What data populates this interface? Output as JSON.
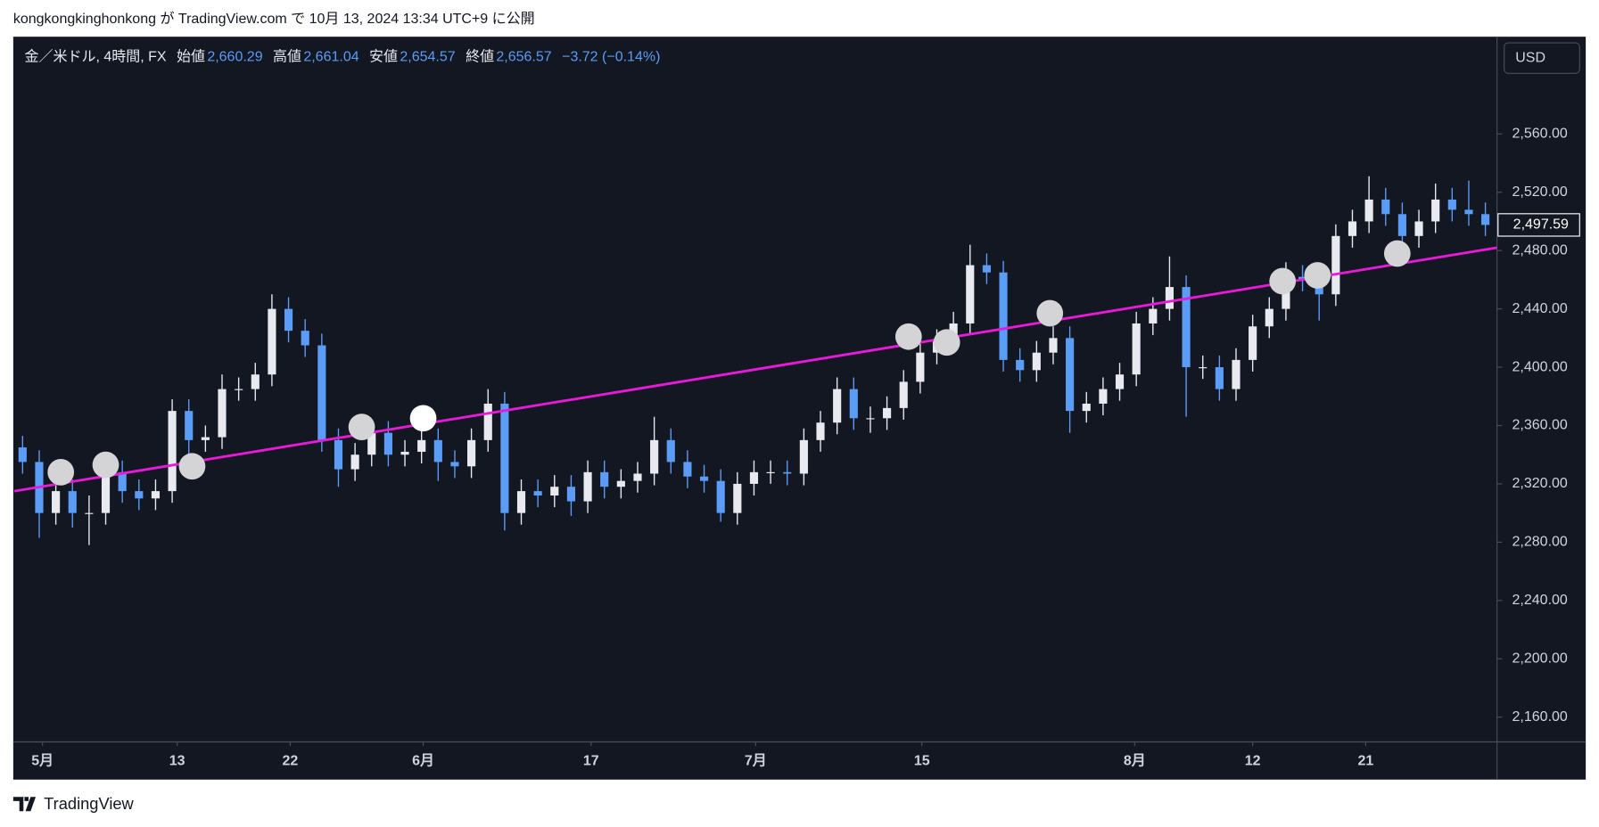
{
  "header": "kongkongkinghonkong が TradingView.com で 10月 13, 2024 13:34 UTC+9 に公開",
  "currency_button": "USD",
  "footer": "TradingView",
  "chart_data": {
    "type": "candlestick",
    "title": "金／米ドル, 4時間, FX",
    "ohlc_legend": [
      {
        "label": "始値",
        "value": "2,660.29"
      },
      {
        "label": "高値",
        "value": "2,661.04"
      },
      {
        "label": "安値",
        "value": "2,654.57"
      },
      {
        "label": "終値",
        "value": "2,656.57"
      }
    ],
    "change": "−3.72 (−0.14%)",
    "up_color": "#e8eaf0",
    "down_color": "#5b9cf6",
    "xlim": [
      -0.5,
      88.7
    ],
    "xticks": [
      {
        "value": 1.2,
        "label": "5月"
      },
      {
        "value": 9.3,
        "label": "13"
      },
      {
        "value": 16.1,
        "label": "22"
      },
      {
        "value": 24.1,
        "label": "6月"
      },
      {
        "value": 34.2,
        "label": "17"
      },
      {
        "value": 44.1,
        "label": "7月"
      },
      {
        "value": 54.1,
        "label": "15"
      },
      {
        "value": 66.9,
        "label": "8月"
      },
      {
        "value": 74.0,
        "label": "12"
      },
      {
        "value": 80.8,
        "label": "21"
      }
    ],
    "ylim": [
      2143,
      2626
    ],
    "yticks": [
      {
        "value": 2160,
        "label": "2,160.00"
      },
      {
        "value": 2200,
        "label": "2,200.00"
      },
      {
        "value": 2240,
        "label": "2,240.00"
      },
      {
        "value": 2280,
        "label": "2,280.00"
      },
      {
        "value": 2320,
        "label": "2,320.00"
      },
      {
        "value": 2360,
        "label": "2,360.00"
      },
      {
        "value": 2400,
        "label": "2,400.00"
      },
      {
        "value": 2440,
        "label": "2,440.00"
      },
      {
        "value": 2480,
        "label": "2,480.00"
      },
      {
        "value": 2520,
        "label": "2,520.00"
      },
      {
        "value": 2560,
        "label": "2,560.00"
      }
    ],
    "last_price": {
      "value": 2497.59,
      "label": "2,497.59"
    },
    "open": [
      2345,
      2335,
      2300,
      2315,
      2300,
      2300,
      2328,
      2315,
      2310,
      2315,
      2370,
      2350,
      2352,
      2385,
      2385,
      2395,
      2440,
      2425,
      2415,
      2350,
      2330,
      2340,
      2355,
      2340,
      2342,
      2350,
      2335,
      2332,
      2350,
      2375,
      2300,
      2315,
      2312,
      2318,
      2308,
      2328,
      2318,
      2322,
      2327,
      2350,
      2335,
      2325,
      2322,
      2300,
      2320,
      2328,
      2328,
      2327,
      2350,
      2362,
      2385,
      2365,
      2365,
      2372,
      2390,
      2410,
      2418,
      2430,
      2470,
      2465,
      2405,
      2398,
      2410,
      2420,
      2370,
      2375,
      2385,
      2395,
      2430,
      2440,
      2455,
      2400,
      2400,
      2385,
      2405,
      2428,
      2440,
      2462,
      2460,
      2450,
      2490,
      2500,
      2515,
      2505,
      2490,
      2500,
      2515,
      2508,
      2505
    ],
    "high": [
      2353,
      2343,
      2323,
      2323,
      2312,
      2336,
      2336,
      2323,
      2323,
      2378,
      2378,
      2360,
      2395,
      2393,
      2403,
      2450,
      2448,
      2433,
      2423,
      2358,
      2348,
      2363,
      2363,
      2350,
      2362,
      2358,
      2343,
      2358,
      2385,
      2383,
      2323,
      2323,
      2326,
      2326,
      2336,
      2336,
      2330,
      2335,
      2366,
      2358,
      2343,
      2333,
      2330,
      2328,
      2336,
      2336,
      2336,
      2358,
      2370,
      2393,
      2393,
      2373,
      2380,
      2398,
      2418,
      2426,
      2438,
      2484,
      2478,
      2473,
      2413,
      2418,
      2428,
      2428,
      2383,
      2393,
      2403,
      2438,
      2448,
      2476,
      2463,
      2408,
      2408,
      2413,
      2436,
      2448,
      2472,
      2470,
      2468,
      2498,
      2508,
      2531,
      2523,
      2513,
      2508,
      2526,
      2523,
      2528,
      2513
    ],
    "low": [
      2327,
      2283,
      2292,
      2290,
      2278,
      2292,
      2307,
      2302,
      2302,
      2307,
      2338,
      2342,
      2344,
      2377,
      2377,
      2387,
      2417,
      2407,
      2342,
      2318,
      2322,
      2332,
      2332,
      2332,
      2334,
      2322,
      2324,
      2324,
      2342,
      2288,
      2292,
      2304,
      2304,
      2298,
      2300,
      2310,
      2310,
      2314,
      2319,
      2327,
      2317,
      2314,
      2294,
      2292,
      2312,
      2320,
      2319,
      2319,
      2342,
      2354,
      2357,
      2355,
      2357,
      2364,
      2382,
      2402,
      2410,
      2422,
      2457,
      2397,
      2390,
      2390,
      2402,
      2355,
      2362,
      2367,
      2377,
      2387,
      2422,
      2432,
      2366,
      2392,
      2377,
      2377,
      2397,
      2420,
      2432,
      2452,
      2432,
      2442,
      2482,
      2492,
      2497,
      2478,
      2482,
      2492,
      2500,
      2497,
      2490
    ],
    "close": [
      2335,
      2300,
      2315,
      2300,
      2300,
      2328,
      2315,
      2310,
      2315,
      2370,
      2350,
      2352,
      2385,
      2385,
      2395,
      2440,
      2425,
      2415,
      2350,
      2330,
      2340,
      2355,
      2340,
      2342,
      2350,
      2335,
      2332,
      2350,
      2375,
      2300,
      2315,
      2312,
      2318,
      2308,
      2328,
      2318,
      2322,
      2327,
      2350,
      2335,
      2325,
      2322,
      2300,
      2320,
      2328,
      2328,
      2327,
      2350,
      2362,
      2385,
      2365,
      2365,
      2372,
      2390,
      2410,
      2418,
      2430,
      2470,
      2465,
      2405,
      2398,
      2410,
      2420,
      2370,
      2375,
      2385,
      2395,
      2430,
      2440,
      2455,
      2400,
      2400,
      2385,
      2405,
      2428,
      2440,
      2462,
      2460,
      2450,
      2490,
      2500,
      2515,
      2505,
      2490,
      2500,
      2515,
      2508,
      2505,
      2497.59
    ],
    "trendline": {
      "color": "#e81ad9",
      "x": [
        -0.5,
        88.7
      ],
      "y": [
        2315,
        2482
      ]
    },
    "markers": {
      "x": [
        2.3,
        5.0,
        10.2,
        20.4,
        24.1,
        53.3,
        55.6,
        61.8,
        75.8,
        77.9,
        82.7
      ],
      "y": [
        2328,
        2333,
        2332,
        2359,
        2365,
        2421,
        2417,
        2437,
        2459,
        2463,
        2478
      ],
      "colors": [
        "#d4d4d6",
        "#d4d4d6",
        "#d4d4d6",
        "#d4d4d6",
        "#ffffff",
        "#d4d4d6",
        "#d4d4d6",
        "#d4d4d6",
        "#d4d4d6",
        "#d4d4d6",
        "#d4d4d6"
      ]
    }
  }
}
